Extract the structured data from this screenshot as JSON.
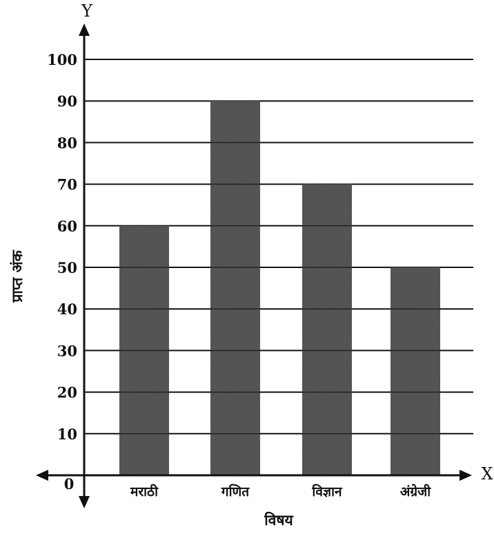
{
  "chart_data": {
    "type": "bar",
    "categories": [
      "मराठी",
      "गणित",
      "विज्ञान",
      "अंग्रेजी"
    ],
    "values": [
      60,
      90,
      70,
      50
    ],
    "xlabel": "विषय",
    "ylabel": "प्राप्त अंक",
    "x_axis_letter": "X",
    "y_axis_letter": "Y",
    "origin_label": "0",
    "yticks": [
      10,
      20,
      30,
      40,
      50,
      60,
      70,
      80,
      90,
      100
    ],
    "ylim": [
      0,
      100
    ],
    "grid": true,
    "bar_color": "#5a5a5a"
  }
}
